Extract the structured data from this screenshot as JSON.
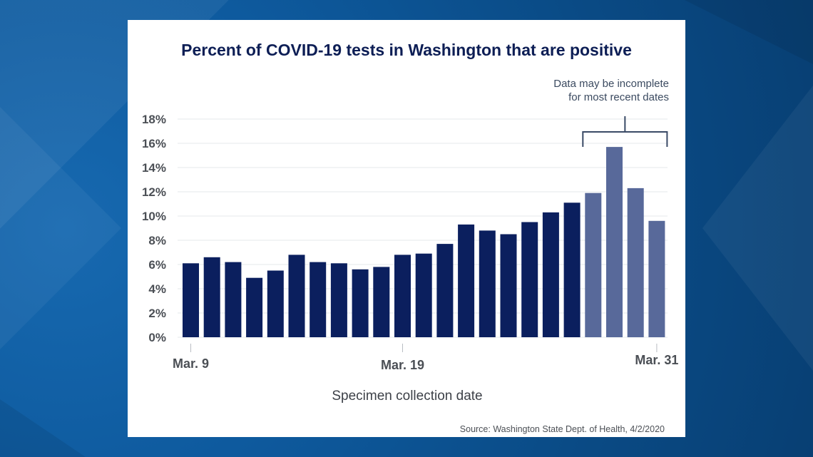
{
  "chart_data": {
    "type": "bar",
    "title": "Percent of COVID-19 tests in Washington that are positive",
    "xlabel": "Specimen collection date",
    "ylabel": "",
    "ylim": [
      0,
      18
    ],
    "yticks": [
      0,
      2,
      4,
      6,
      8,
      10,
      12,
      14,
      16,
      18
    ],
    "ytick_labels": [
      "0%",
      "2%",
      "4%",
      "6%",
      "8%",
      "10%",
      "12%",
      "14%",
      "16%",
      "18%"
    ],
    "x_tick_labels": [
      {
        "label": "Mar. 9",
        "index": 0
      },
      {
        "label": "Mar. 19",
        "index": 10
      },
      {
        "label": "Mar. 31",
        "index": 22
      }
    ],
    "values": [
      6.1,
      6.6,
      6.2,
      4.9,
      5.5,
      6.8,
      6.2,
      6.1,
      5.6,
      5.8,
      6.8,
      6.9,
      7.7,
      9.3,
      8.8,
      8.5,
      9.5,
      10.3,
      11.1,
      11.9,
      15.7,
      12.3,
      9.6
    ],
    "incomplete_start_index": 19,
    "annotation": {
      "lines": [
        "Data may be incomplete",
        "for most recent dates"
      ]
    },
    "colors": {
      "complete": "#0b1f5e",
      "incomplete": "#58699a",
      "grid": "#e6e8eb",
      "bracket": "#3a4a66"
    },
    "grid": true,
    "source": "Source: Washington State Dept. of Health, 4/2/2020"
  }
}
